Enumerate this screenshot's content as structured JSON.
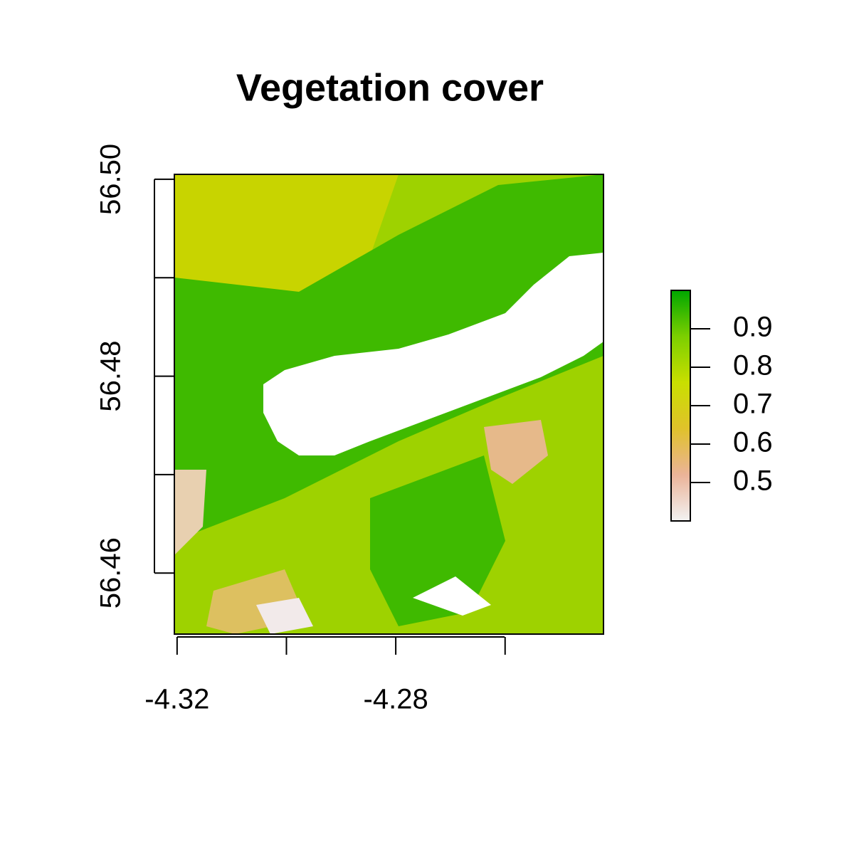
{
  "chart_data": {
    "type": "raster",
    "title": "Vegetation cover",
    "xlim": [
      -4.3205,
      -4.242
    ],
    "ylim": [
      56.4538,
      56.5005
    ],
    "xticks": [
      -4.32,
      {
        "value": -4.3,
        "label": null
      },
      -4.28,
      {
        "value": -4.26,
        "label": null
      }
    ],
    "yticks": [
      {
        "value": 56.5,
        "label": "56.50"
      },
      {
        "value": 56.49,
        "label": null
      },
      56.48,
      {
        "value": 56.47,
        "label": null
      },
      56.46
    ],
    "legend": {
      "zlim": [
        0.4,
        1.0
      ],
      "ticks": [
        0.5,
        0.6,
        0.7,
        0.8,
        0.9
      ],
      "colors": [
        "#f2f2f2",
        "#ebb398",
        "#e0c22b",
        "#c9df00",
        "#7ccf00",
        "#00a600"
      ]
    }
  }
}
